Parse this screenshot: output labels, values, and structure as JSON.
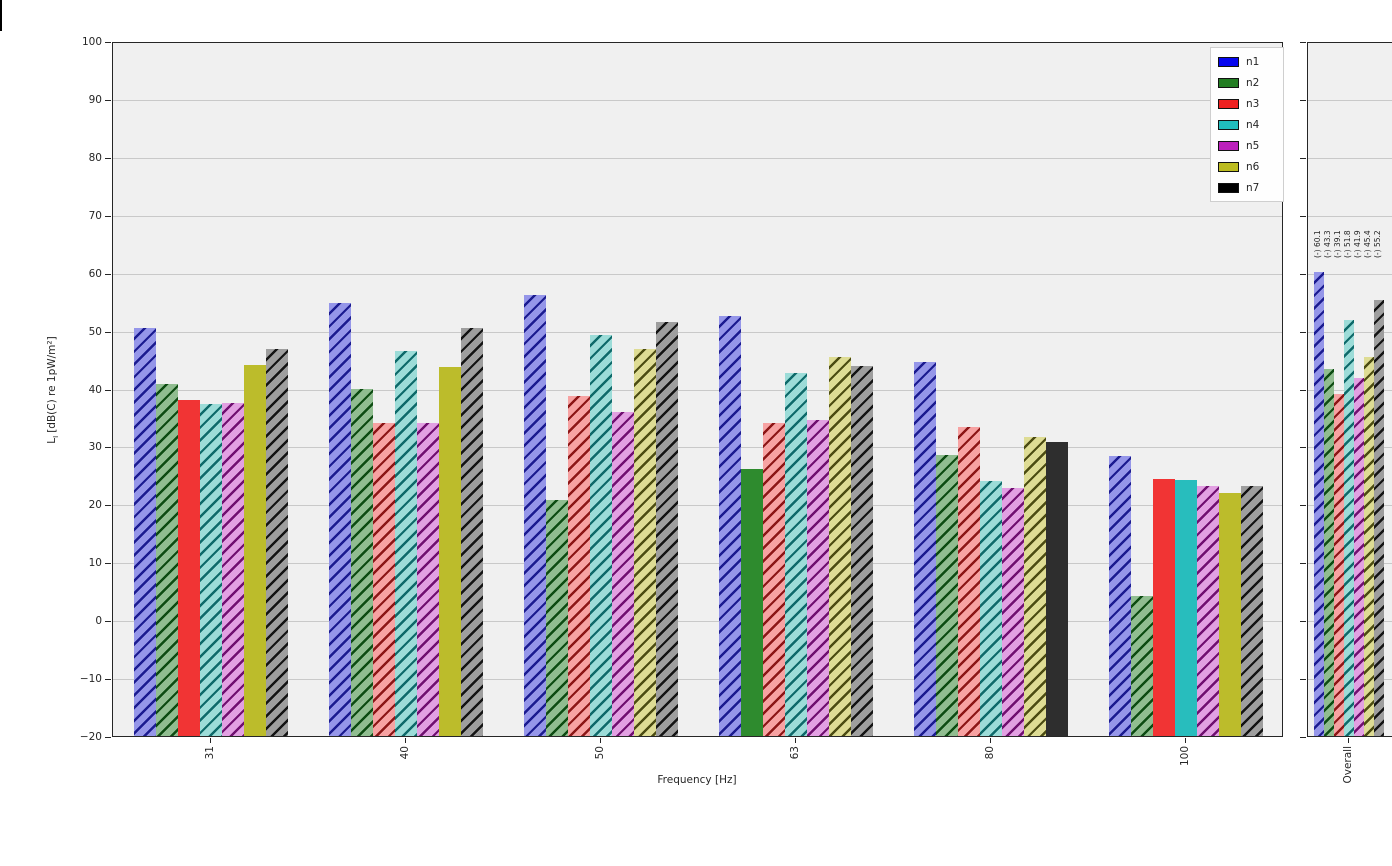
{
  "figure": {
    "ylabel_letter": "L",
    "ylabel_sub": "I",
    "ylabel_unit": "[dB(C) re 1pW/m²]",
    "xlabel": "Frequency [Hz]",
    "overall_tick_label": "Overall",
    "plot_bg_color": "#f0f0f0",
    "grid_color": "#c9c9c9"
  },
  "legend": {
    "labels": [
      "n1",
      "n2",
      "n3",
      "n4",
      "n5",
      "n6",
      "n7"
    ]
  },
  "chart_data": {
    "type": "bar",
    "title": "",
    "xlabel": "Frequency [Hz]",
    "ylabel": "L_I [dB(C) re 1pW/m²]",
    "ylim": [
      -20,
      100
    ],
    "yticks": [
      100,
      90,
      80,
      70,
      60,
      50,
      40,
      30,
      20,
      10,
      0,
      -10,
      -20
    ],
    "grid": true,
    "legend_position": "upper right",
    "categories": [
      "31",
      "40",
      "50",
      "63",
      "80",
      "100"
    ],
    "overall_category": "Overall",
    "series": [
      {
        "name": "n1",
        "legend_color": "#0606ef",
        "light_color": "#9596e9",
        "hatch_color": "#1b1b90",
        "solid_color": "#1414dd",
        "values": [
          50.5,
          54.8,
          56.1,
          52.6,
          44.6,
          28.3
        ],
        "solid_flags": [
          false,
          false,
          false,
          false,
          false,
          false
        ],
        "overall_value": 60.1,
        "overall_solid": false,
        "overall_annotation": "(-) 60.1"
      },
      {
        "name": "n2",
        "legend_color": "#227d22",
        "light_color": "#90bd90",
        "hatch_color": "#0d4c12",
        "solid_color": "#2e8b2e",
        "values": [
          40.7,
          39.9,
          20.8,
          26.1,
          28.5,
          4.2
        ],
        "solid_flags": [
          false,
          false,
          false,
          true,
          false,
          false
        ],
        "overall_value": 43.3,
        "overall_solid": false,
        "overall_annotation": "(-) 43.3"
      },
      {
        "name": "n3",
        "legend_color": "#ef2020",
        "light_color": "#f7a2a2",
        "hatch_color": "#8c1616",
        "solid_color": "#f13434",
        "values": [
          38.1,
          34.1,
          38.7,
          34.0,
          33.3,
          24.3
        ],
        "solid_flags": [
          true,
          false,
          false,
          false,
          false,
          true
        ],
        "overall_value": 39.1,
        "overall_solid": false,
        "overall_annotation": "(-) 39.1"
      },
      {
        "name": "n4",
        "legend_color": "#20bcbc",
        "light_color": "#9cdcd8",
        "hatch_color": "#0e6a6a",
        "solid_color": "#28bdbd",
        "values": [
          37.4,
          46.4,
          49.3,
          42.6,
          24.1,
          24.2
        ],
        "solid_flags": [
          false,
          false,
          false,
          false,
          false,
          true
        ],
        "overall_value": 51.8,
        "overall_solid": false,
        "overall_annotation": "(-) 51.8"
      },
      {
        "name": "n5",
        "legend_color": "#bc20bc",
        "light_color": "#e2a0e2",
        "hatch_color": "#700f70",
        "solid_color": "#bc2ebc",
        "values": [
          37.5,
          34.1,
          35.9,
          34.6,
          22.9,
          23.2
        ],
        "solid_flags": [
          false,
          false,
          false,
          false,
          false,
          false
        ],
        "overall_value": 41.9,
        "overall_solid": false,
        "overall_annotation": "(-) 41.9"
      },
      {
        "name": "n6",
        "legend_color": "#bcbc20",
        "light_color": "#dedc94",
        "hatch_color": "#4c4c12",
        "solid_color": "#bcbc2b",
        "values": [
          44.1,
          43.8,
          46.8,
          45.5,
          31.6,
          22.0
        ],
        "solid_flags": [
          true,
          true,
          false,
          false,
          false,
          true
        ],
        "overall_value": 45.4,
        "overall_solid": false,
        "overall_annotation": "(-) 45.4"
      },
      {
        "name": "n7",
        "legend_color": "#000000",
        "light_color": "#9e9e9e",
        "hatch_color": "#141414",
        "solid_color": "#2e2e2e",
        "values": [
          46.9,
          50.5,
          51.5,
          43.9,
          30.8,
          23.1
        ],
        "solid_flags": [
          false,
          false,
          false,
          false,
          true,
          false
        ],
        "overall_value": 55.2,
        "overall_solid": false,
        "overall_annotation": "(-) 55.2"
      }
    ]
  }
}
